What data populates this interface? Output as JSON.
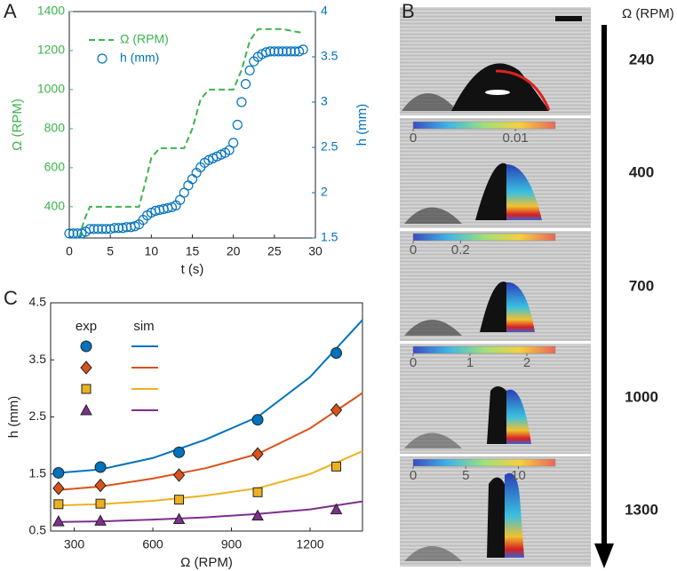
{
  "panel_labels": [
    "A",
    "B",
    "C"
  ],
  "chart_data": [
    {
      "type": "line",
      "x_label": "t (s)",
      "y_label": "Ω (RPM)",
      "y2_label": "h (mm)",
      "xlim": [
        0,
        30
      ],
      "xticks": [
        0,
        5,
        10,
        15,
        20,
        25,
        30
      ],
      "ylim": [
        240,
        1400
      ],
      "yticks": [
        400,
        600,
        800,
        1000,
        1200,
        1400
      ],
      "y2lim": [
        1.5,
        4
      ],
      "y2ticks": [
        1.5,
        2,
        2.5,
        3,
        3.5,
        4
      ],
      "legend": "upper left",
      "series": [
        {
          "name": "Ω (RPM)",
          "color": "#3cb44b",
          "style": "dashed",
          "x": [
            1.2,
            1.8,
            2.5,
            8.5,
            9,
            10,
            11,
            14,
            15,
            16,
            17,
            20,
            21,
            22,
            23,
            26,
            28.5
          ],
          "values": [
            240,
            330,
            400,
            400,
            480,
            650,
            700,
            700,
            800,
            950,
            1000,
            1000,
            1100,
            1250,
            1310,
            1310,
            1290
          ]
        },
        {
          "name": "h (mm)",
          "color": "#0072bd",
          "marker": "circle",
          "axis": "y2",
          "x": [
            0,
            0.5,
            1,
            1.5,
            2,
            2.5,
            3,
            3.5,
            4,
            4.5,
            5,
            5.5,
            6,
            6.5,
            7,
            7.5,
            8,
            8.5,
            9,
            9.5,
            10,
            10.5,
            11,
            11.5,
            12,
            12.5,
            13,
            13.5,
            14,
            14.5,
            15,
            15.5,
            16,
            16.5,
            17,
            17.5,
            18,
            18.5,
            19,
            19.5,
            20,
            20.5,
            21,
            21.5,
            22,
            22.5,
            23,
            23.5,
            24,
            24.5,
            25,
            25.5,
            26,
            26.5,
            27,
            27.5,
            28,
            28.5
          ],
          "values": [
            1.55,
            1.55,
            1.55,
            1.55,
            1.57,
            1.6,
            1.6,
            1.6,
            1.6,
            1.6,
            1.6,
            1.61,
            1.61,
            1.61,
            1.62,
            1.62,
            1.63,
            1.65,
            1.7,
            1.75,
            1.78,
            1.8,
            1.81,
            1.82,
            1.83,
            1.84,
            1.86,
            1.92,
            2.0,
            2.08,
            2.15,
            2.22,
            2.28,
            2.33,
            2.36,
            2.38,
            2.4,
            2.42,
            2.44,
            2.47,
            2.55,
            2.75,
            3.0,
            3.2,
            3.35,
            3.45,
            3.5,
            3.53,
            3.55,
            3.56,
            3.56,
            3.56,
            3.56,
            3.56,
            3.56,
            3.56,
            3.56,
            3.58
          ]
        }
      ]
    },
    {
      "type": "scatter",
      "x_label": "Ω (RPM)",
      "y_label": "h (mm)",
      "xlim": [
        210,
        1400
      ],
      "xticks": [
        300,
        600,
        900,
        1200
      ],
      "ylim": [
        0.5,
        4.5
      ],
      "yticks": [
        0.5,
        1.5,
        2.5,
        3.5,
        4.5
      ],
      "legend_headers": [
        "exp",
        "sim"
      ],
      "series": [
        {
          "marker": "circle",
          "color": "#0072bd",
          "x": [
            240,
            400,
            700,
            1000,
            1300
          ],
          "values": [
            1.52,
            1.62,
            1.88,
            2.45,
            3.62
          ]
        },
        {
          "marker": "diamond",
          "color": "#d95319",
          "x": [
            240,
            400,
            700,
            1000,
            1300
          ],
          "values": [
            1.25,
            1.3,
            1.48,
            1.85,
            2.62
          ]
        },
        {
          "marker": "square",
          "color": "#edb120",
          "x": [
            240,
            400,
            700,
            1000,
            1300
          ],
          "values": [
            0.97,
            0.98,
            1.05,
            1.18,
            1.63
          ]
        },
        {
          "marker": "triangle",
          "color": "#7e2f8e",
          "x": [
            240,
            400,
            700,
            1000,
            1300
          ],
          "values": [
            0.67,
            0.68,
            0.71,
            0.77,
            0.88
          ]
        }
      ],
      "fits": [
        {
          "color": "#0072bd",
          "x": [
            240,
            400,
            600,
            800,
            1000,
            1200,
            1400
          ],
          "values": [
            1.52,
            1.58,
            1.78,
            2.1,
            2.5,
            3.2,
            4.2
          ]
        },
        {
          "color": "#d95319",
          "x": [
            240,
            400,
            600,
            800,
            1000,
            1200,
            1400
          ],
          "values": [
            1.22,
            1.28,
            1.42,
            1.6,
            1.85,
            2.3,
            2.92
          ]
        },
        {
          "color": "#edb120",
          "x": [
            240,
            400,
            600,
            800,
            1000,
            1200,
            1400
          ],
          "values": [
            0.95,
            0.97,
            1.03,
            1.12,
            1.25,
            1.5,
            1.9
          ]
        },
        {
          "color": "#7e2f8e",
          "x": [
            240,
            400,
            600,
            800,
            1000,
            1200,
            1400
          ],
          "values": [
            0.66,
            0.67,
            0.7,
            0.74,
            0.8,
            0.88,
            1.02
          ]
        }
      ]
    }
  ],
  "panel_b": {
    "axis_label": "Ω (RPM)",
    "speeds": [
      "240",
      "400",
      "700",
      "1000",
      "1300"
    ],
    "colorbars": [
      {
        "lim": [
          0,
          0.0139
        ],
        "ticks": [
          0,
          0.01
        ]
      },
      {
        "lim": [
          0,
          0.6
        ],
        "ticks": [
          0,
          0.2
        ]
      },
      {
        "lim": [
          0,
          2.5
        ],
        "ticks": [
          0,
          1,
          2
        ]
      },
      {
        "lim": [
          0,
          13.5
        ],
        "ticks": [
          0,
          5,
          10
        ]
      }
    ]
  }
}
